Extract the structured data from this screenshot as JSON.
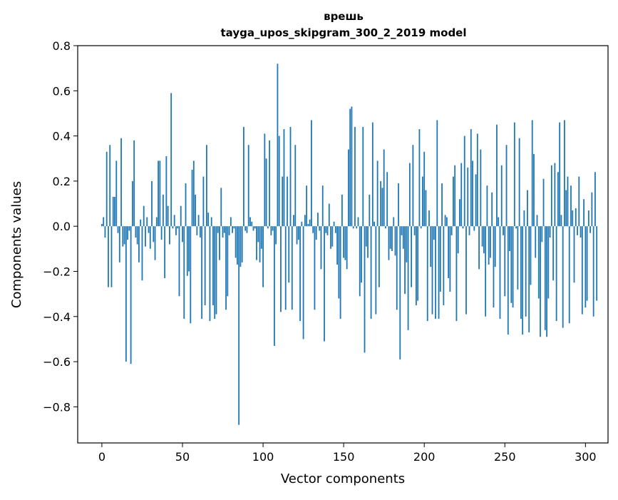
{
  "chart_data": {
    "type": "bar",
    "title_line1": "врешь",
    "title_line2": "tayga_upos_skipgram_300_2_2019 model",
    "xlabel": "Vector components",
    "ylabel": "Components values",
    "xlim": [
      -15,
      314
    ],
    "ylim": [
      -0.96,
      0.8
    ],
    "x_ticks": [
      0,
      50,
      100,
      150,
      200,
      250,
      300
    ],
    "x_tick_labels": [
      "0",
      "50",
      "100",
      "150",
      "200",
      "250",
      "300"
    ],
    "y_ticks": [
      -0.8,
      -0.6,
      -0.4,
      -0.2,
      0.0,
      0.2,
      0.4,
      0.6,
      0.8
    ],
    "y_tick_labels": [
      "−0.8",
      "−0.6",
      "−0.4",
      "−0.2",
      "0.0",
      "0.2",
      "0.4",
      "0.6",
      "0.8"
    ],
    "bar_color": "#1f77b4",
    "values": [
      0.01,
      0.04,
      -0.05,
      0.33,
      -0.27,
      0.36,
      -0.27,
      0.13,
      0.13,
      0.29,
      -0.03,
      -0.16,
      0.39,
      -0.09,
      -0.08,
      -0.6,
      -0.06,
      -0.02,
      -0.61,
      0.2,
      0.38,
      -0.05,
      -0.08,
      -0.16,
      0.03,
      -0.24,
      0.09,
      -0.09,
      0.04,
      -0.03,
      -0.1,
      0.2,
      -0.07,
      -0.15,
      0.04,
      0.29,
      0.29,
      -0.06,
      0.14,
      -0.23,
      0.31,
      0.09,
      -0.08,
      0.59,
      -0.01,
      0.05,
      -0.04,
      -0.01,
      -0.31,
      0.09,
      -0.07,
      -0.41,
      0.19,
      -0.22,
      -0.2,
      -0.43,
      0.25,
      0.29,
      0.14,
      -0.04,
      0.05,
      -0.05,
      -0.41,
      0.22,
      -0.35,
      0.36,
      0.06,
      -0.42,
      0.04,
      -0.35,
      -0.41,
      -0.39,
      -0.03,
      -0.15,
      0.17,
      -0.05,
      -0.03,
      -0.37,
      -0.31,
      -0.04,
      0.04,
      -0.03,
      -0.01,
      -0.14,
      -0.17,
      -0.88,
      -0.18,
      -0.16,
      0.44,
      -0.02,
      -0.03,
      0.36,
      0.04,
      0.02,
      -0.02,
      -0.01,
      -0.15,
      -0.07,
      -0.16,
      -0.1,
      -0.27,
      0.41,
      0.3,
      -0.01,
      0.38,
      -0.04,
      -0.02,
      -0.53,
      -0.08,
      0.72,
      0.4,
      -0.38,
      0.22,
      0.43,
      -0.37,
      0.22,
      -0.25,
      0.44,
      -0.37,
      0.05,
      0.36,
      -0.08,
      -0.06,
      -0.42,
      0.02,
      -0.5,
      0.05,
      0.18,
      0.01,
      0.03,
      0.47,
      -0.03,
      -0.37,
      -0.06,
      0.06,
      -0.02,
      -0.19,
      0.18,
      -0.51,
      -0.03,
      -0.04,
      0.1,
      -0.1,
      -0.09,
      0.02,
      -0.03,
      -0.17,
      -0.32,
      -0.41,
      0.14,
      -0.14,
      -0.15,
      -0.19,
      0.34,
      0.52,
      0.53,
      -0.01,
      0.44,
      -0.01,
      0.04,
      -0.31,
      -0.25,
      0.44,
      -0.56,
      -0.09,
      -0.14,
      0.14,
      -0.41,
      0.46,
      0.02,
      -0.39,
      0.29,
      -0.27,
      0.2,
      0.17,
      0.34,
      -0.01,
      0.24,
      -0.15,
      -0.1,
      -0.11,
      0.04,
      -0.13,
      -0.37,
      0.19,
      -0.59,
      -0.04,
      -0.1,
      -0.3,
      -0.16,
      -0.46,
      0.28,
      -0.27,
      0.36,
      -0.04,
      -0.35,
      -0.33,
      0.43,
      -0.01,
      0.22,
      0.33,
      0.16,
      -0.42,
      0.07,
      -0.18,
      -0.39,
      -0.06,
      -0.41,
      0.47,
      -0.41,
      -0.29,
      0.19,
      -0.35,
      0.05,
      0.04,
      -0.23,
      -0.29,
      -0.04,
      0.22,
      0.27,
      -0.42,
      -0.12,
      0.12,
      0.28,
      -0.01,
      0.4,
      -0.39,
      0.26,
      -0.04,
      0.43,
      0.29,
      -0.02,
      0.23,
      0.41,
      -0.19,
      0.34,
      -0.09,
      -0.12,
      -0.4,
      0.18,
      -0.17,
      -0.14,
      0.15,
      -0.36,
      -0.18,
      0.45,
      0.04,
      -0.41,
      0.27,
      -0.04,
      -0.31,
      0.36,
      -0.48,
      -0.11,
      -0.34,
      -0.36,
      0.46,
      -0.01,
      -0.28,
      0.39,
      -0.41,
      -0.48,
      0.07,
      -0.4,
      0.16,
      -0.47,
      -0.26,
      0.47,
      0.32,
      -0.14,
      0.05,
      -0.32,
      -0.49,
      -0.07,
      0.21,
      -0.46,
      -0.49,
      -0.32,
      -0.05,
      0.27,
      -0.24,
      0.28,
      -0.42,
      0.24,
      0.46,
      0.05,
      -0.45,
      0.47,
      0.16,
      0.22,
      -0.43,
      0.18,
      0.07,
      -0.25,
      0.08,
      -0.04,
      0.22,
      -0.05,
      -0.39,
      0.12,
      -0.36,
      -0.33,
      0.07,
      -0.03,
      0.15,
      -0.4,
      0.24,
      -0.33
    ]
  }
}
